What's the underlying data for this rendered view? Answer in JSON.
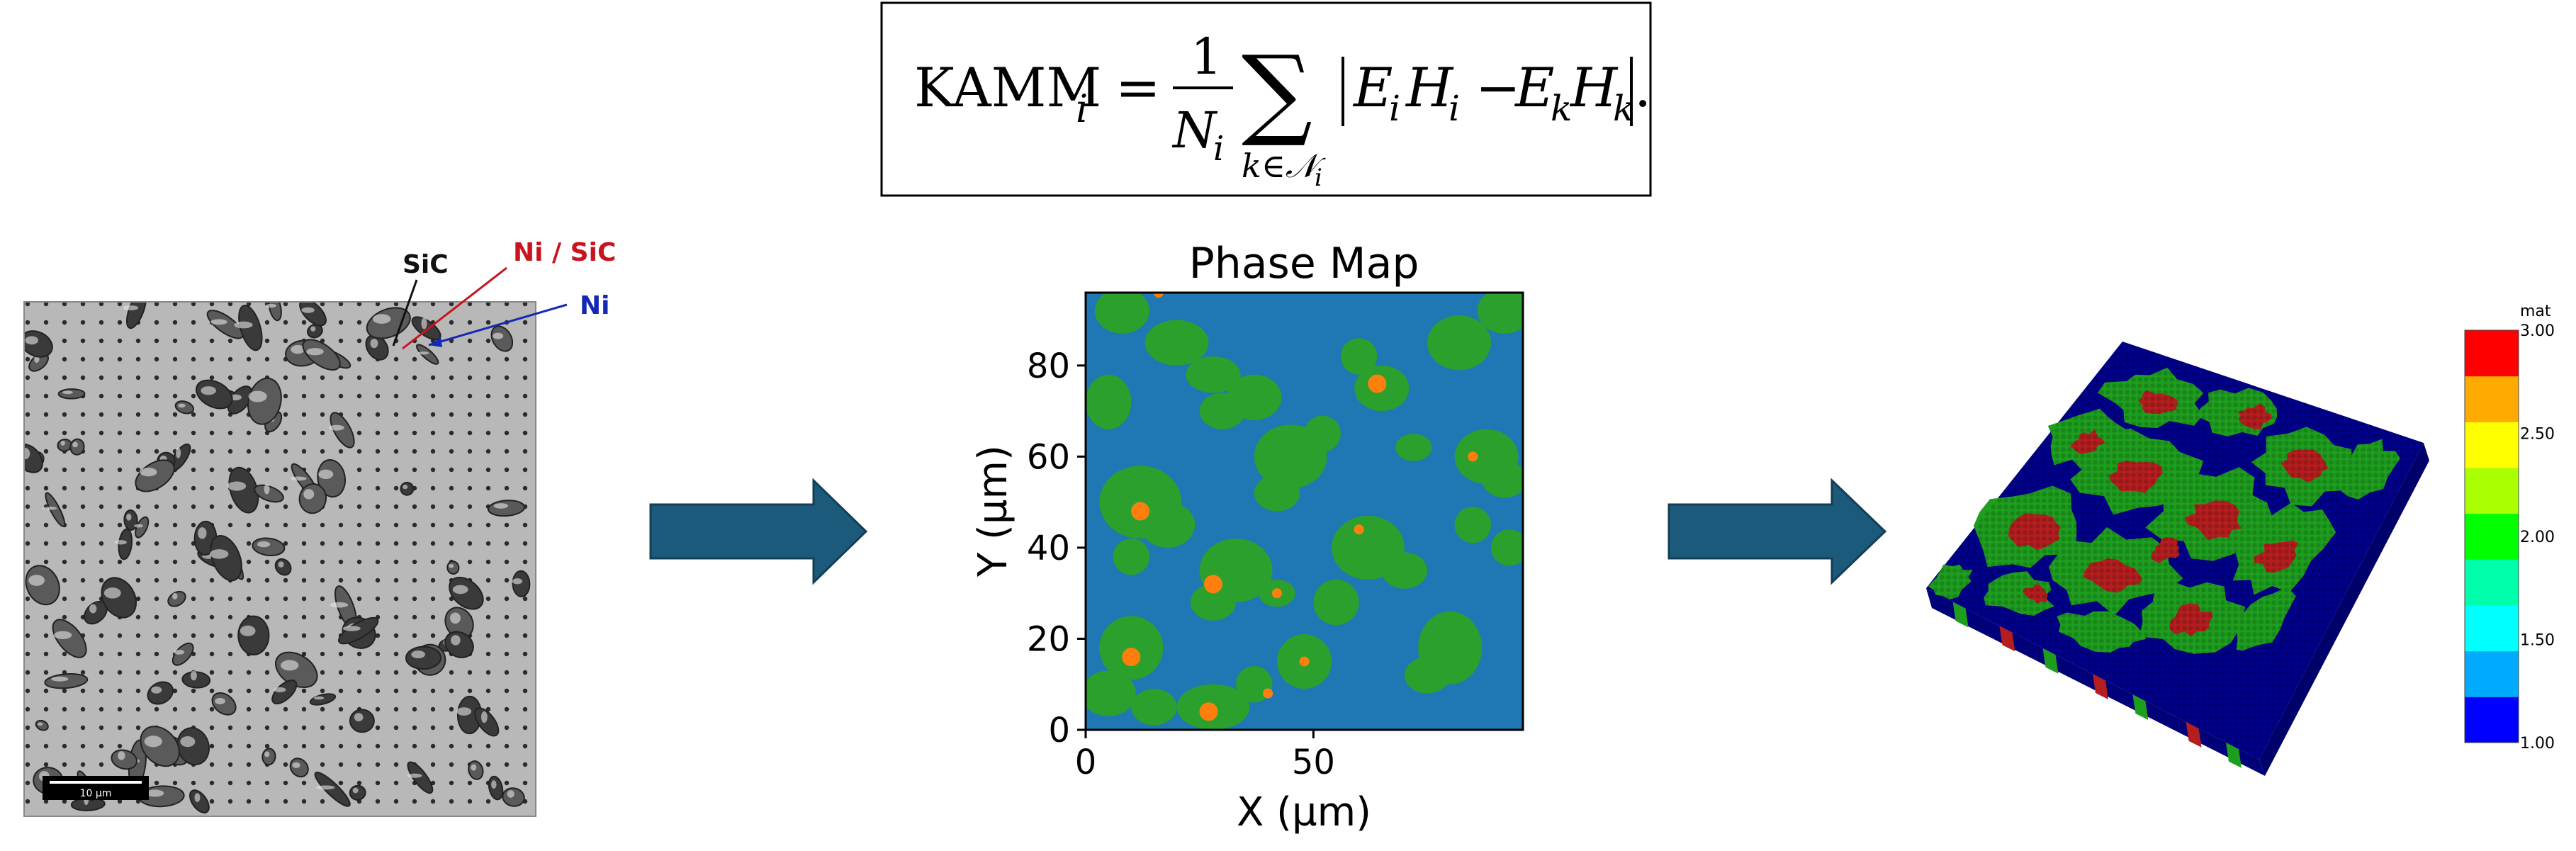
{
  "formula": {
    "lhs": "KAMM",
    "lhs_sub": "i",
    "equals": "=",
    "numerator": "1",
    "denominator": "N",
    "denominator_sub": "i",
    "sum_symbol": "∑",
    "sum_under": "k∈𝒩",
    "sum_under_sub": "i",
    "abs_content_a": "E",
    "abs_content_a_sub": "i",
    "abs_content_b": "H",
    "abs_content_b_sub": "i",
    "minus": "−",
    "abs_content_c": "E",
    "abs_content_c_sub": "k",
    "abs_content_d": "H",
    "abs_content_d_sub": "k",
    "trailing": "."
  },
  "micrograph": {
    "label_sic": "SiC",
    "label_ni_sic": "Ni / SiC",
    "label_ni": "Ni",
    "scale_bar": "10 µm",
    "colors": {
      "sic": "#111111",
      "ni_sic": "#c8141e",
      "ni": "#1428b4"
    }
  },
  "chart_data": {
    "type": "heatmap",
    "title": "Phase Map",
    "xlabel": "X (µm)",
    "ylabel": "Y (µm)",
    "xlim": [
      0,
      96
    ],
    "ylim": [
      0,
      96
    ],
    "xticks": [
      0,
      50
    ],
    "yticks": [
      0,
      20,
      40,
      60,
      80
    ],
    "phase_colors": [
      "#1f77b4",
      "#2ca02c",
      "#ff7f0e"
    ]
  },
  "model3d": {
    "colorbar_title": "mat",
    "colorbar_ticks": [
      "3.00",
      "2.50",
      "2.00",
      "1.50",
      "1.00"
    ],
    "colorbar_colors": [
      "#0000ff",
      "#00aaff",
      "#00ffff",
      "#00ffaa",
      "#00ff00",
      "#aaff00",
      "#ffff00",
      "#ffaa00",
      "#ff0000"
    ],
    "phase_colors": [
      "#00008b",
      "#1e9e1e",
      "#b41e1e"
    ]
  },
  "arrows": {
    "color": "#1b5a7a"
  }
}
